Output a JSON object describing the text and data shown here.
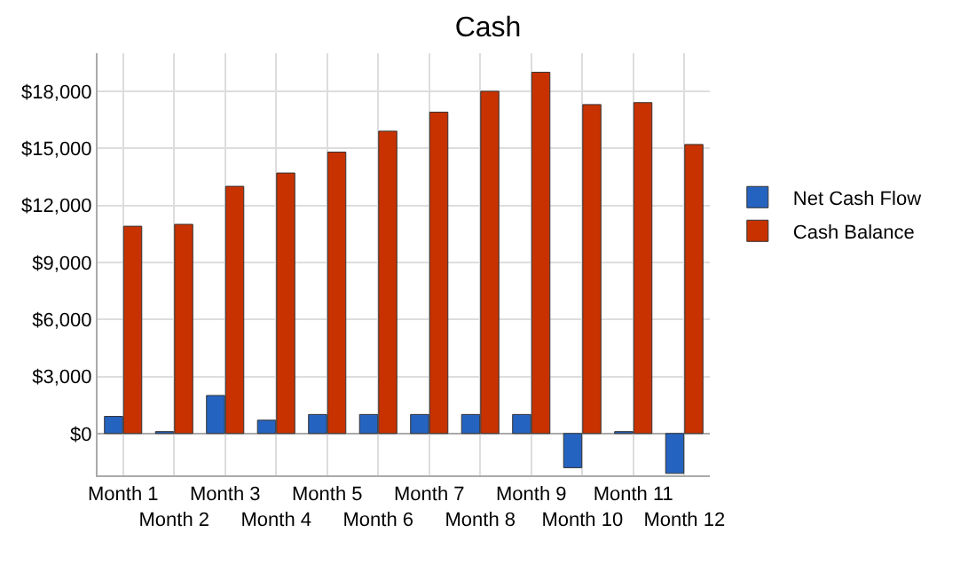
{
  "chart_data": {
    "type": "bar",
    "title": "Cash",
    "categories": [
      "Month 1",
      "Month 2",
      "Month 3",
      "Month 4",
      "Month 5",
      "Month 6",
      "Month 7",
      "Month 8",
      "Month 9",
      "Month 10",
      "Month 11",
      "Month 12"
    ],
    "series": [
      {
        "name": "Net Cash Flow",
        "color": "#2563c0",
        "values": [
          900,
          100,
          2000,
          700,
          1000,
          1000,
          1000,
          1000,
          1000,
          -1800,
          100,
          -2100
        ]
      },
      {
        "name": "Cash Balance",
        "color": "#c83200",
        "values": [
          10900,
          11000,
          13000,
          13700,
          14800,
          15900,
          16900,
          18000,
          19000,
          17300,
          17400,
          15200
        ]
      }
    ],
    "ylim": [
      -2200,
      20000
    ],
    "yticks": [
      {
        "value": 0,
        "label": "$0"
      },
      {
        "value": 3000,
        "label": "$3,000"
      },
      {
        "value": 6000,
        "label": "$6,000"
      },
      {
        "value": 9000,
        "label": "$9,000"
      },
      {
        "value": 12000,
        "label": "$12,000"
      },
      {
        "value": 15000,
        "label": "$15,000"
      },
      {
        "value": 18000,
        "label": "$18,000"
      }
    ],
    "grid": true,
    "legend": "right"
  }
}
